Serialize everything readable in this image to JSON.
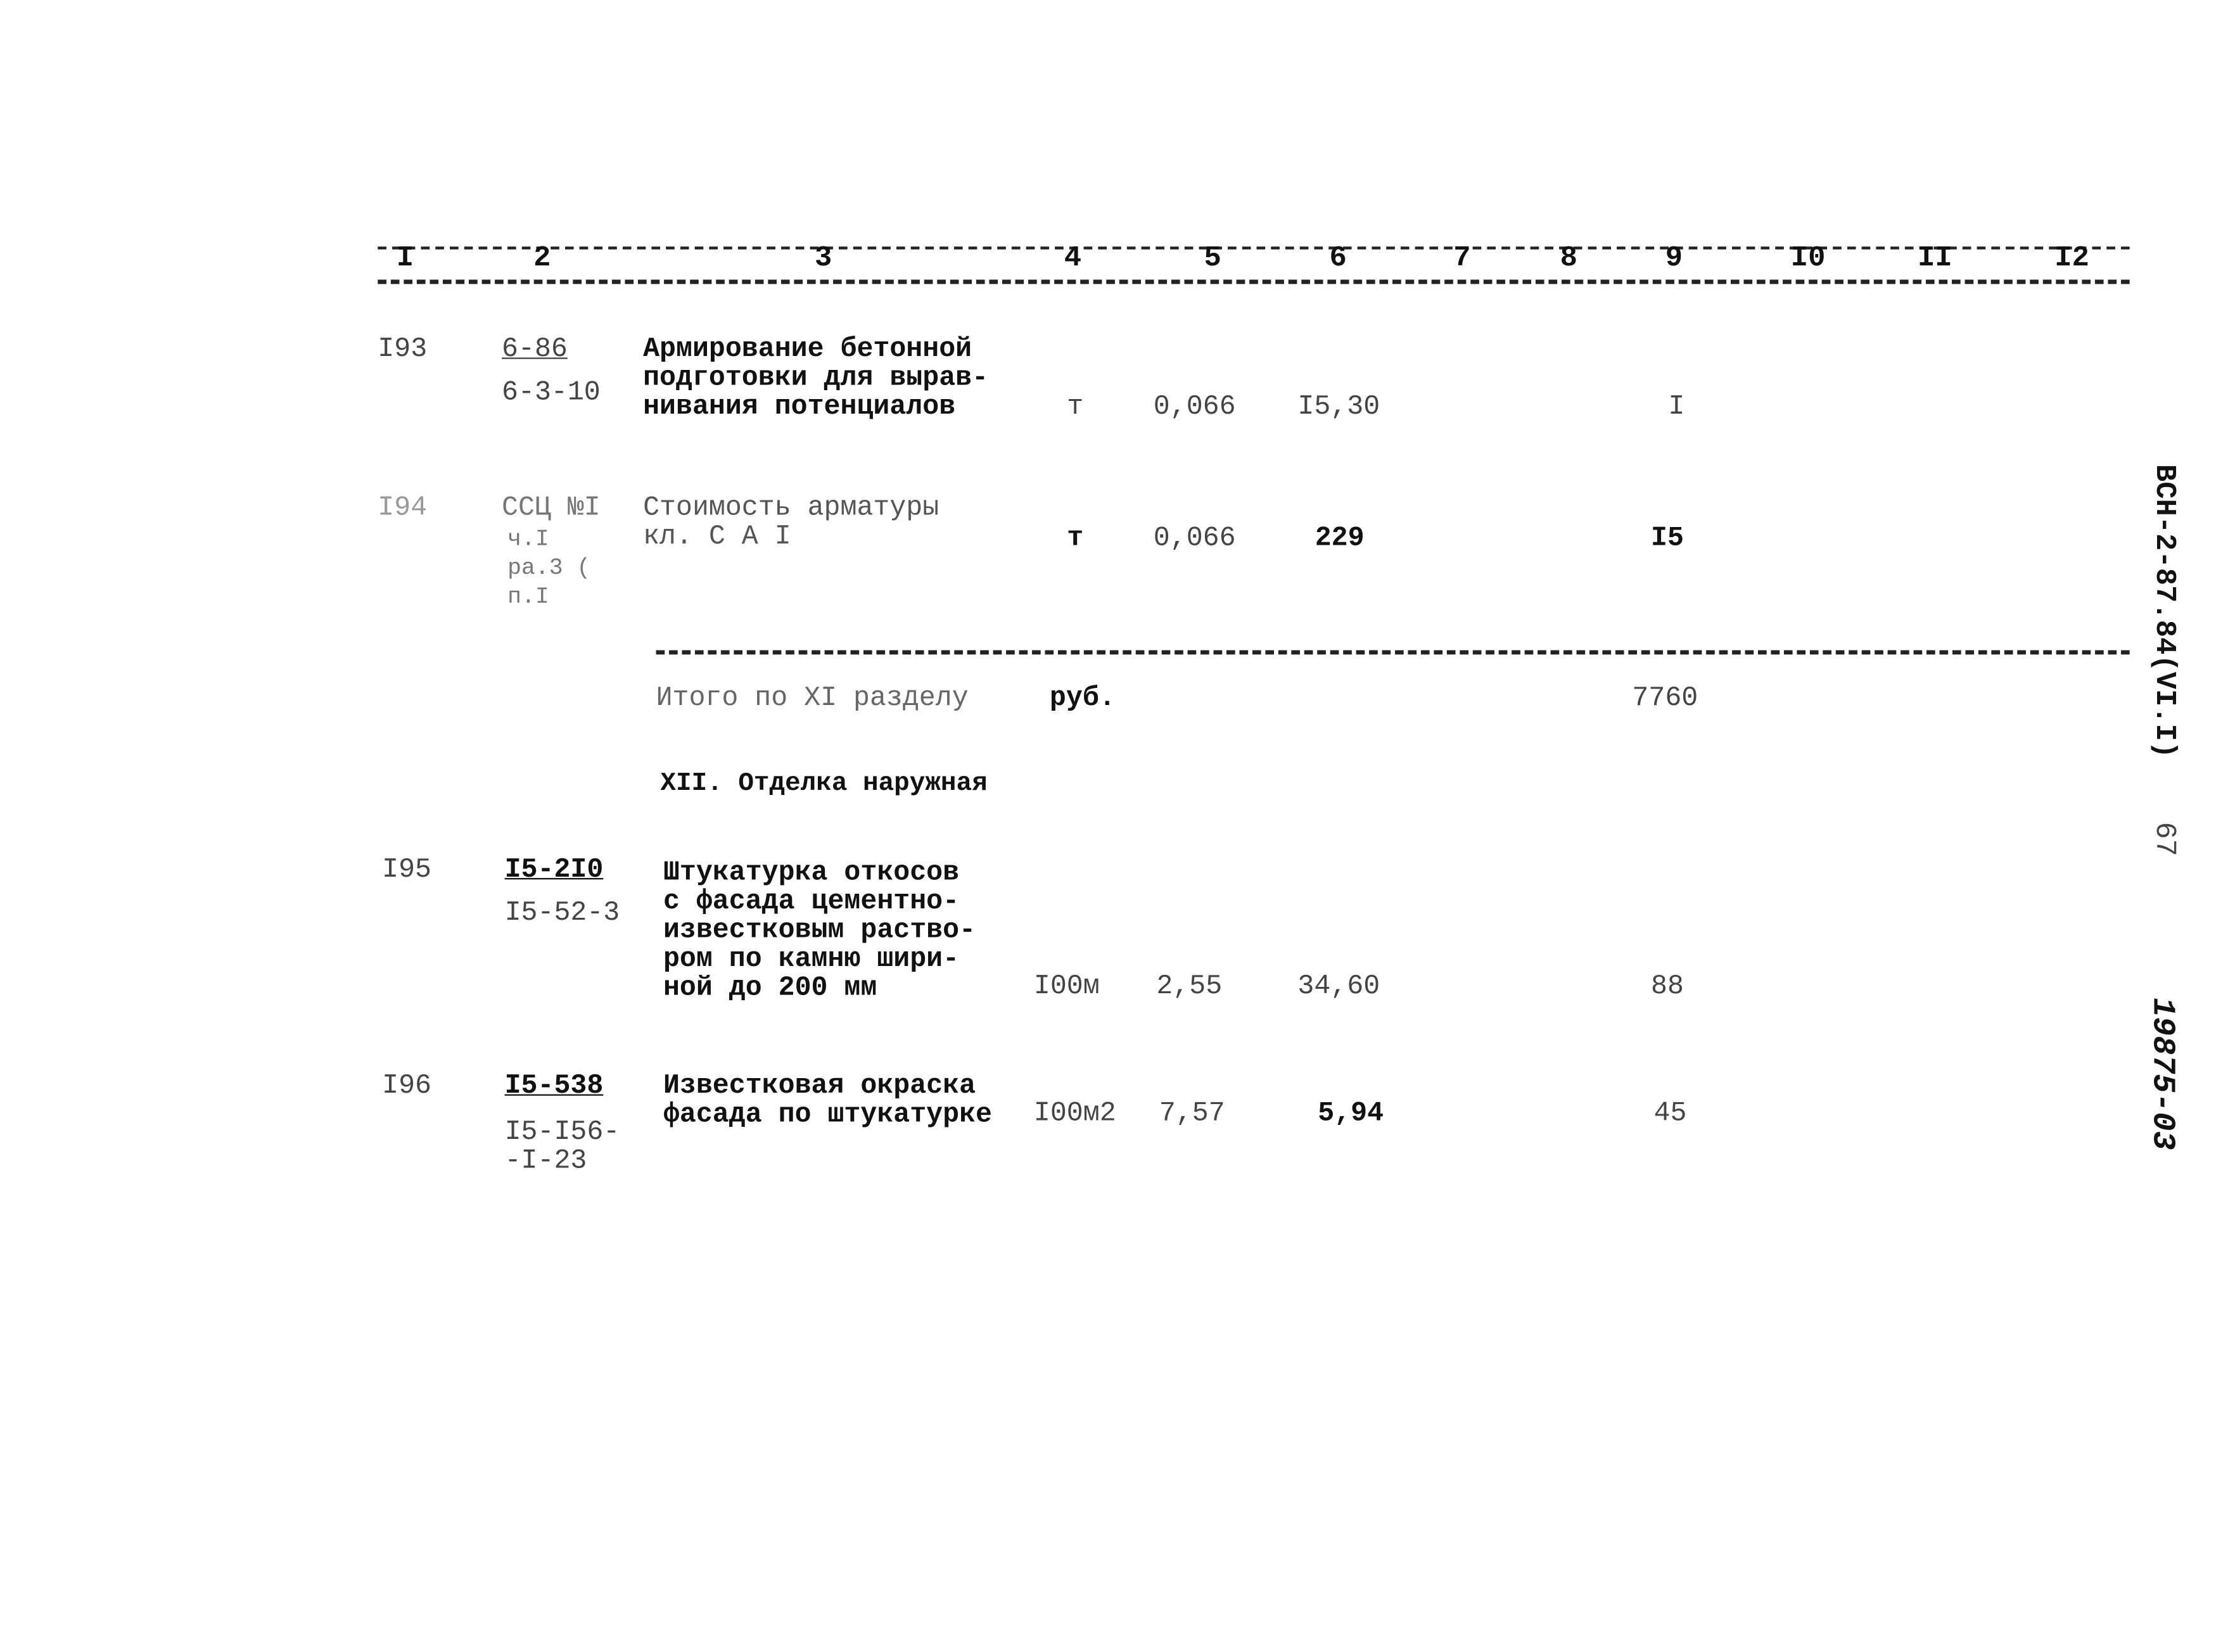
{
  "header_columns": [
    "I",
    "2",
    "3",
    "4",
    "5",
    "6",
    "7",
    "8",
    "9",
    "I0",
    "II",
    "I2"
  ],
  "rows": [
    {
      "num": "I93",
      "code_top": "6-86",
      "code_bottom": "6-3-10",
      "desc": "Армирование бетонной\nподготовки для вырав-\nнивания потенциалов",
      "unit": "т",
      "qty": "0,066",
      "price": "I5,30",
      "col9": "I"
    },
    {
      "num": "I94",
      "code_top": "ССЦ №I",
      "code_bottom": "ч.I\nра.3 (\nп.I",
      "desc": "Стоимость арматуры\nкл. С А I",
      "unit": "т",
      "qty": "0,066",
      "price": "229",
      "col9": "I5"
    }
  ],
  "subtotal": {
    "label": "Итого по XI разделу",
    "unit": "руб.",
    "value": "7760"
  },
  "section_title": "XII. Отделка наружная",
  "rows2": [
    {
      "num": "I95",
      "code_top": "I5-2I0",
      "code_bottom": "I5-52-3",
      "desc": "Штукатурка откосов\nс фасада цементно-\nизвестковым раство-\nром по камню шири-\nной до 200 мм",
      "unit": "I00м",
      "qty": "2,55",
      "price": "34,60",
      "col9": "88"
    },
    {
      "num": "I96",
      "code_top": "I5-538",
      "code_bottom": "I5-I56-\n-I-23",
      "desc": "Известковая окраска\nфасада по штукатурке",
      "unit": "I00м2",
      "qty": "7,57",
      "price": "5,94",
      "col9": "45"
    }
  ],
  "side": {
    "doc_code": "ВСН-2-87.84(VI.I)",
    "page": "67",
    "inventory": "19875-03"
  }
}
